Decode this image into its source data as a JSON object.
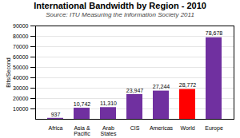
{
  "chart_data": {
    "type": "bar",
    "title": "International Bandwidth by Region - 2010",
    "subtitle": "Source: ITU Measuring the Information Society 2011",
    "categories": [
      "Africa",
      "Asia &\nPacific",
      "Arab\nStates",
      "CIS",
      "Americas",
      "World",
      "Europe"
    ],
    "values": [
      937,
      10742,
      11310,
      23947,
      27244,
      28772,
      78678
    ],
    "value_labels": [
      "937",
      "10,742",
      "11,310",
      "23,947",
      "27,244",
      "28,772",
      "78,678"
    ],
    "data_labels": true,
    "colors": [
      "#7030a0",
      "#7030a0",
      "#7030a0",
      "#7030a0",
      "#7030a0",
      "#ff0000",
      "#7030a0"
    ],
    "ylabel": "Bits/Second",
    "ylim": [
      0,
      90000
    ],
    "yticks": [
      10000,
      20000,
      30000,
      40000,
      50000,
      60000,
      70000,
      80000,
      90000
    ],
    "grid": true
  }
}
